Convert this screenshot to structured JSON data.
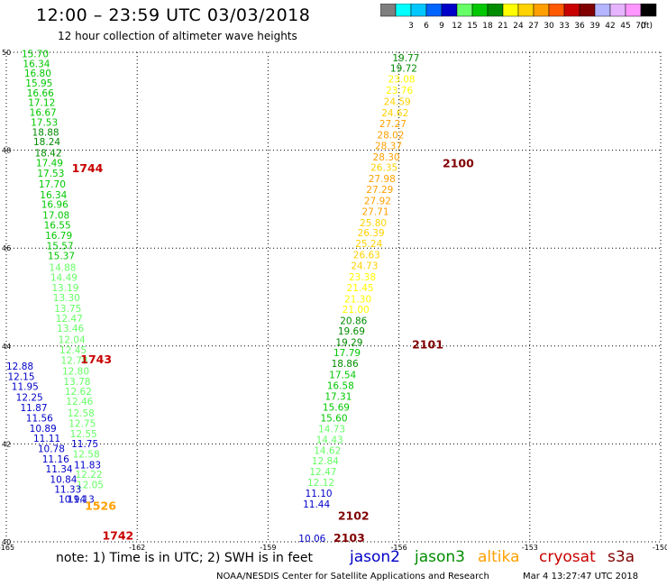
{
  "header": {
    "title": "12:00 – 23:59 UTC 03/03/2018",
    "subtitle": "12 hour collection of altimeter wave heights"
  },
  "color_scale": {
    "unit": "(ft)",
    "bins": [
      {
        "label": "",
        "color": "#7f7f7f"
      },
      {
        "label": "3",
        "color": "#00ffff"
      },
      {
        "label": "6",
        "color": "#00c8ff"
      },
      {
        "label": "9",
        "color": "#0064ff"
      },
      {
        "label": "12",
        "color": "#0000c8"
      },
      {
        "label": "15",
        "color": "#66ff66"
      },
      {
        "label": "18",
        "color": "#00c800"
      },
      {
        "label": "21",
        "color": "#008c00"
      },
      {
        "label": "24",
        "color": "#ffff00"
      },
      {
        "label": "27",
        "color": "#ffd200"
      },
      {
        "label": "30",
        "color": "#ffa000"
      },
      {
        "label": "33",
        "color": "#ff5a00"
      },
      {
        "label": "36",
        "color": "#c80000"
      },
      {
        "label": "39",
        "color": "#800000"
      },
      {
        "label": "42",
        "color": "#b4b4ff"
      },
      {
        "label": "45",
        "color": "#e6b4ff"
      },
      {
        "label": "70",
        "color": "#ff96ff"
      },
      {
        "label": "",
        "color": "#000000"
      }
    ]
  },
  "footer": {
    "note": "note: 1) Time is in UTC; 2) SWH is in feet",
    "credit": "NOAA/NESDIS Center for Satellite Applications and Research",
    "timestamp": "Mar  4 13:27:47 UTC 2018",
    "legend": [
      {
        "label": "jason2",
        "color": "#0000c8"
      },
      {
        "label": "jason3",
        "color": "#008c00"
      },
      {
        "label": "altika",
        "color": "#ffa000"
      },
      {
        "label": "cryosat",
        "color": "#c80000"
      },
      {
        "label": "s3a",
        "color": "#800000"
      }
    ]
  },
  "chart_data": {
    "type": "scatter",
    "xlim": [
      -165,
      -150
    ],
    "ylim": [
      40,
      50
    ],
    "x_ticks": [
      -165,
      -162,
      -159,
      -156,
      -153,
      -150
    ],
    "y_ticks": [
      40,
      42,
      44,
      46,
      48,
      50
    ],
    "grid": true,
    "pass_labels": [
      {
        "text": "1744",
        "x": -163.5,
        "y": 47.55,
        "color": "#c80000"
      },
      {
        "text": "1743",
        "x": -163.3,
        "y": 43.65,
        "color": "#c80000"
      },
      {
        "text": "1526",
        "x": -163.2,
        "y": 40.65,
        "color": "#ffa000"
      },
      {
        "text": "1742",
        "x": -162.8,
        "y": 40.05,
        "color": "#c80000"
      },
      {
        "text": "2100",
        "x": -155.0,
        "y": 47.65,
        "color": "#800000"
      },
      {
        "text": "2101",
        "x": -155.7,
        "y": 43.95,
        "color": "#800000"
      },
      {
        "text": "2102",
        "x": -157.4,
        "y": 40.45,
        "color": "#800000"
      },
      {
        "text": "2103",
        "x": -157.5,
        "y": 40.0,
        "color": "#800000"
      }
    ],
    "series": [
      {
        "name": "cryosat",
        "color_left": "#66ff66",
        "points": [
          [
            -164.65,
            49.9,
            "15.70"
          ],
          [
            -164.62,
            49.7,
            "16.34"
          ],
          [
            -164.59,
            49.5,
            "16.80"
          ],
          [
            -164.56,
            49.3,
            "15.95"
          ],
          [
            -164.53,
            49.1,
            "16.66"
          ],
          [
            -164.5,
            48.9,
            "17.12"
          ],
          [
            -164.47,
            48.7,
            "16.67"
          ],
          [
            -164.44,
            48.5,
            "17.53"
          ],
          [
            -164.41,
            48.3,
            "18.88"
          ],
          [
            -164.38,
            48.1,
            "18.24"
          ],
          [
            -164.35,
            47.87,
            "18.42"
          ],
          [
            -164.32,
            47.67,
            "17.49"
          ],
          [
            -164.29,
            47.46,
            "17.53"
          ],
          [
            -164.26,
            47.24,
            "17.70"
          ],
          [
            -164.23,
            47.02,
            "16.34"
          ],
          [
            -164.2,
            46.82,
            "16.96"
          ],
          [
            -164.17,
            46.6,
            "17.08"
          ],
          [
            -164.14,
            46.4,
            "16.55"
          ],
          [
            -164.11,
            46.19,
            "16.79"
          ],
          [
            -164.08,
            45.98,
            "15.57"
          ],
          [
            -164.05,
            45.77,
            "15.37"
          ],
          [
            -164.02,
            45.53,
            "14.88"
          ],
          [
            -163.99,
            45.33,
            "14.49"
          ],
          [
            -163.96,
            45.12,
            "13.19"
          ],
          [
            -163.93,
            44.92,
            "13.30"
          ],
          [
            -163.9,
            44.7,
            "13.75"
          ],
          [
            -163.87,
            44.49,
            "12.47"
          ],
          [
            -163.84,
            44.29,
            "13.46"
          ],
          [
            -163.81,
            44.06,
            "12.04"
          ],
          [
            -163.78,
            43.85,
            "12.45"
          ],
          [
            -163.75,
            43.64,
            "12.78"
          ],
          [
            -163.72,
            43.42,
            "12.80"
          ],
          [
            -163.69,
            43.2,
            "13.78"
          ],
          [
            -163.66,
            43.0,
            "12.62"
          ],
          [
            -163.63,
            42.8,
            "12.46"
          ],
          [
            -163.6,
            42.56,
            "12.58"
          ],
          [
            -163.57,
            42.35,
            "12.75"
          ],
          [
            -163.54,
            42.14,
            "12.55"
          ],
          [
            -163.51,
            41.93,
            "11.75"
          ],
          [
            -163.48,
            41.72,
            "12.58"
          ],
          [
            -163.45,
            41.5,
            "11.83"
          ],
          [
            -163.42,
            41.31,
            "12.22"
          ],
          [
            -163.39,
            41.1,
            "12.05"
          ]
        ]
      },
      {
        "name": "jason2",
        "points": [
          [
            -165.0,
            43.52,
            "12.88"
          ],
          [
            -164.97,
            43.31,
            "12.15"
          ],
          [
            -164.88,
            43.1,
            "11.95"
          ],
          [
            -164.78,
            42.88,
            "12.25"
          ],
          [
            -164.68,
            42.67,
            "11.87"
          ],
          [
            -164.55,
            42.46,
            "11.56"
          ],
          [
            -164.47,
            42.25,
            "10.89"
          ],
          [
            -164.38,
            42.04,
            "11.11"
          ],
          [
            -164.28,
            41.83,
            "10.78"
          ],
          [
            -164.18,
            41.62,
            "11.16"
          ],
          [
            -164.1,
            41.42,
            "11.34"
          ],
          [
            -164.0,
            41.21,
            "10.84"
          ],
          [
            -163.9,
            41.0,
            "11.33"
          ],
          [
            -163.8,
            40.8,
            "10.94"
          ],
          [
            -163.6,
            40.8,
            "11.13"
          ]
        ]
      },
      {
        "name": "jason3",
        "points": [
          [
            -156.15,
            49.82,
            "19.77"
          ],
          [
            -156.2,
            49.6,
            "19.72"
          ],
          [
            -156.25,
            49.38,
            "23.08"
          ],
          [
            -156.3,
            49.15,
            "23.76"
          ],
          [
            -156.35,
            48.92,
            "24.59"
          ],
          [
            -156.4,
            48.69,
            "24.62"
          ],
          [
            -156.45,
            48.47,
            "27.27"
          ],
          [
            -156.5,
            48.24,
            "28.02"
          ],
          [
            -156.55,
            48.02,
            "28.37"
          ],
          [
            -156.6,
            47.79,
            "28.30"
          ],
          [
            -156.65,
            47.58,
            "26.35"
          ],
          [
            -156.7,
            47.35,
            "27.98"
          ],
          [
            -156.75,
            47.13,
            "27.29"
          ],
          [
            -156.8,
            46.9,
            "27.92"
          ],
          [
            -156.85,
            46.68,
            "27.71"
          ],
          [
            -156.9,
            46.45,
            "25.80"
          ],
          [
            -156.95,
            46.24,
            "26.39"
          ],
          [
            -157.0,
            46.02,
            "25.24"
          ],
          [
            -157.05,
            45.79,
            "26.63"
          ],
          [
            -157.1,
            45.57,
            "24.73"
          ],
          [
            -157.15,
            45.34,
            "23.38"
          ],
          [
            -157.2,
            45.12,
            "21.45"
          ],
          [
            -157.25,
            44.89,
            "21.30"
          ],
          [
            -157.3,
            44.68,
            "21.00"
          ],
          [
            -157.35,
            44.45,
            "20.86"
          ],
          [
            -157.4,
            44.24,
            "19.69"
          ],
          [
            -157.45,
            44.01,
            "19.29"
          ],
          [
            -157.5,
            43.79,
            "17.79"
          ],
          [
            -157.55,
            43.57,
            "18.86"
          ],
          [
            -157.6,
            43.34,
            "17.54"
          ],
          [
            -157.65,
            43.12,
            "16.58"
          ],
          [
            -157.7,
            42.9,
            "17.31"
          ],
          [
            -157.75,
            42.68,
            "15.69"
          ],
          [
            -157.8,
            42.46,
            "15.60"
          ],
          [
            -157.85,
            42.24,
            "14.73"
          ],
          [
            -157.9,
            42.02,
            "14.43"
          ],
          [
            -157.95,
            41.8,
            "14.62"
          ],
          [
            -158.0,
            41.58,
            "12.84"
          ],
          [
            -158.05,
            41.36,
            "12.47"
          ],
          [
            -158.1,
            41.14,
            "12.12"
          ],
          [
            -158.15,
            40.92,
            "11.10"
          ],
          [
            -158.2,
            40.7,
            "11.44"
          ],
          [
            -158.3,
            40.0,
            "10.06"
          ]
        ]
      }
    ]
  }
}
